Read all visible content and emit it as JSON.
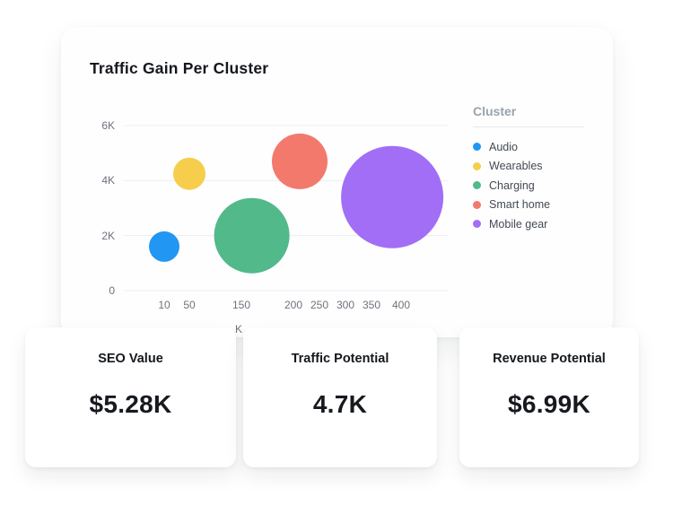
{
  "chart_data": {
    "type": "bubble",
    "title": "Traffic Gain Per Cluster",
    "xlabel": "K",
    "ylabel": "",
    "x_ticks": [
      "10",
      "50",
      "150",
      "200",
      "250",
      "300",
      "350",
      "400"
    ],
    "y_ticks": [
      "6K",
      "4K",
      "2K",
      "0"
    ],
    "ylim": [
      0,
      6000
    ],
    "grid": "horizontal",
    "legend_position": "right",
    "legend_title": "Cluster",
    "series": [
      {
        "name": "Audio",
        "color": "#2196f3",
        "x": 10,
        "y": 1600,
        "size": 17
      },
      {
        "name": "Wearables",
        "color": "#f6ce4c",
        "x": 50,
        "y": 4250,
        "size": 18
      },
      {
        "name": "Charging",
        "color": "#52b98a",
        "x": 160,
        "y": 2000,
        "size": 42
      },
      {
        "name": "Smart home",
        "color": "#f4796d",
        "x": 212,
        "y": 4700,
        "size": 31
      },
      {
        "name": "Mobile gear",
        "color": "#a16ef5",
        "x": 385,
        "y": 3400,
        "size": 57
      }
    ]
  },
  "stat_cards": [
    {
      "label": "SEO Value",
      "value": "$5.28K"
    },
    {
      "label": "Traffic Potential",
      "value": "4.7K"
    },
    {
      "label": "Revenue Potential",
      "value": "$6.99K"
    }
  ]
}
